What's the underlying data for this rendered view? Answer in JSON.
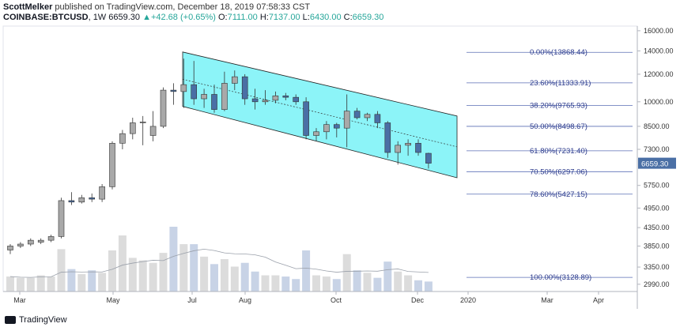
{
  "header": {
    "author": "ScottMelker",
    "published_text": "published on TradingView.com, December 18, 2019 07:58:33 CST",
    "symbol": "COINBASE:BTCUSD",
    "interval": "1W",
    "last": "6659.30",
    "change": "+42.68 (+0.65%)",
    "o_label": "O:",
    "o": "7111.00",
    "h_label": "H:",
    "h": "7137.00",
    "l_label": "L:",
    "l": "6430.00",
    "c_label": "C:",
    "c": "6659.30"
  },
  "footer": {
    "brand": "TradingView"
  },
  "colors": {
    "up": "#a9a9a9",
    "down": "#4a6fa5",
    "volume_up": "#dcdcdc",
    "volume_down": "#c8d3e6",
    "channel_fill": "#66f0f5",
    "fib_line": "#5b6fb5",
    "fib_text": "#2b3a8c",
    "price_badge": "#4a6fa5"
  },
  "chart_data": {
    "type": "candlestick",
    "y_axis": {
      "ticks": [
        16000,
        14000,
        12000,
        10000,
        8500,
        7300,
        5750,
        4950,
        4350,
        3850,
        3350,
        2990
      ],
      "log_scale": true,
      "range": [
        2850,
        16500
      ]
    },
    "x_axis": {
      "ticks": [
        "Mar",
        "May",
        "Jul",
        "Aug",
        "Oct",
        "Dec",
        "2020",
        "Mar",
        "Apr"
      ]
    },
    "current_price_label": "6659.30",
    "candles": [
      {
        "o": 3750,
        "h": 3900,
        "l": 3650,
        "c": 3850
      },
      {
        "o": 3850,
        "h": 3950,
        "l": 3800,
        "c": 3900
      },
      {
        "o": 3900,
        "h": 4050,
        "l": 3850,
        "c": 4000
      },
      {
        "o": 3950,
        "h": 4050,
        "l": 3900,
        "c": 4000
      },
      {
        "o": 4000,
        "h": 4150,
        "l": 3950,
        "c": 4100
      },
      {
        "o": 4100,
        "h": 5300,
        "l": 4050,
        "c": 5200
      },
      {
        "o": 5200,
        "h": 5500,
        "l": 5050,
        "c": 5150
      },
      {
        "o": 5150,
        "h": 5400,
        "l": 5100,
        "c": 5300
      },
      {
        "o": 5300,
        "h": 5450,
        "l": 5150,
        "c": 5250
      },
      {
        "o": 5250,
        "h": 5800,
        "l": 5150,
        "c": 5700
      },
      {
        "o": 5700,
        "h": 7700,
        "l": 5600,
        "c": 7600
      },
      {
        "o": 7600,
        "h": 8300,
        "l": 7300,
        "c": 8100
      },
      {
        "o": 8100,
        "h": 9000,
        "l": 7800,
        "c": 8700
      },
      {
        "o": 8700,
        "h": 9100,
        "l": 7500,
        "c": 8750
      },
      {
        "o": 8000,
        "h": 9400,
        "l": 7700,
        "c": 8500
      },
      {
        "o": 8500,
        "h": 11000,
        "l": 8400,
        "c": 10800
      },
      {
        "o": 10800,
        "h": 11300,
        "l": 9800,
        "c": 10700
      },
      {
        "o": 10700,
        "h": 13300,
        "l": 9600,
        "c": 11200
      },
      {
        "o": 11200,
        "h": 13100,
        "l": 9800,
        "c": 10200
      },
      {
        "o": 10200,
        "h": 10900,
        "l": 9600,
        "c": 10500
      },
      {
        "o": 10500,
        "h": 11200,
        "l": 9300,
        "c": 9500
      },
      {
        "o": 9500,
        "h": 12200,
        "l": 9400,
        "c": 11300
      },
      {
        "o": 11300,
        "h": 12300,
        "l": 10800,
        "c": 11800
      },
      {
        "o": 11800,
        "h": 12000,
        "l": 9800,
        "c": 10200
      },
      {
        "o": 10200,
        "h": 10900,
        "l": 9500,
        "c": 10000
      },
      {
        "o": 10000,
        "h": 10800,
        "l": 9800,
        "c": 10100
      },
      {
        "o": 10100,
        "h": 10700,
        "l": 9900,
        "c": 10400
      },
      {
        "o": 10400,
        "h": 10600,
        "l": 10100,
        "c": 10300
      },
      {
        "o": 10300,
        "h": 10500,
        "l": 9800,
        "c": 10000
      },
      {
        "o": 10000,
        "h": 10300,
        "l": 7800,
        "c": 8000
      },
      {
        "o": 8000,
        "h": 8400,
        "l": 7700,
        "c": 8200
      },
      {
        "o": 8200,
        "h": 8800,
        "l": 7800,
        "c": 8600
      },
      {
        "o": 8600,
        "h": 8700,
        "l": 7900,
        "c": 8400
      },
      {
        "o": 8400,
        "h": 10500,
        "l": 7400,
        "c": 9400
      },
      {
        "o": 9400,
        "h": 9600,
        "l": 8900,
        "c": 9000
      },
      {
        "o": 9000,
        "h": 9300,
        "l": 8800,
        "c": 9200
      },
      {
        "o": 9200,
        "h": 9400,
        "l": 8400,
        "c": 8700
      },
      {
        "o": 8700,
        "h": 8800,
        "l": 6900,
        "c": 7150
      },
      {
        "o": 7150,
        "h": 7700,
        "l": 6600,
        "c": 7500
      },
      {
        "o": 7500,
        "h": 7800,
        "l": 7000,
        "c": 7600
      },
      {
        "o": 7600,
        "h": 7800,
        "l": 7000,
        "c": 7150
      },
      {
        "o": 7111,
        "h": 7137,
        "l": 6430,
        "c": 6659.3
      }
    ],
    "volumes": [
      0.12,
      0.11,
      0.11,
      0.13,
      0.12,
      0.34,
      0.18,
      0.14,
      0.17,
      0.15,
      0.33,
      0.45,
      0.27,
      0.25,
      0.23,
      0.31,
      0.52,
      0.38,
      0.38,
      0.28,
      0.22,
      0.26,
      0.2,
      0.23,
      0.16,
      0.13,
      0.13,
      0.12,
      0.1,
      0.33,
      0.13,
      0.12,
      0.1,
      0.3,
      0.17,
      0.15,
      0.11,
      0.24,
      0.16,
      0.13,
      0.09,
      0.08
    ],
    "fibonacci": [
      {
        "label": "0.00%(13868.44)",
        "price": 13868.44
      },
      {
        "label": "23.60%(11333.91)",
        "price": 11333.91
      },
      {
        "label": "38.20%(9765.93)",
        "price": 9765.93
      },
      {
        "label": "50.00%(8498.67)",
        "price": 8498.67
      },
      {
        "label": "61.80%(7231.40)",
        "price": 7231.4
      },
      {
        "label": "70.50%(6297.06)",
        "price": 6297.06
      },
      {
        "label": "78.60%(5427.15)",
        "price": 5427.15
      },
      {
        "label": "100.00%(3128.89)",
        "price": 3128.89
      }
    ],
    "channel": {
      "start_top": 13900,
      "end_top": 9100,
      "start_bottom": 9700,
      "end_bottom": 6050
    }
  }
}
